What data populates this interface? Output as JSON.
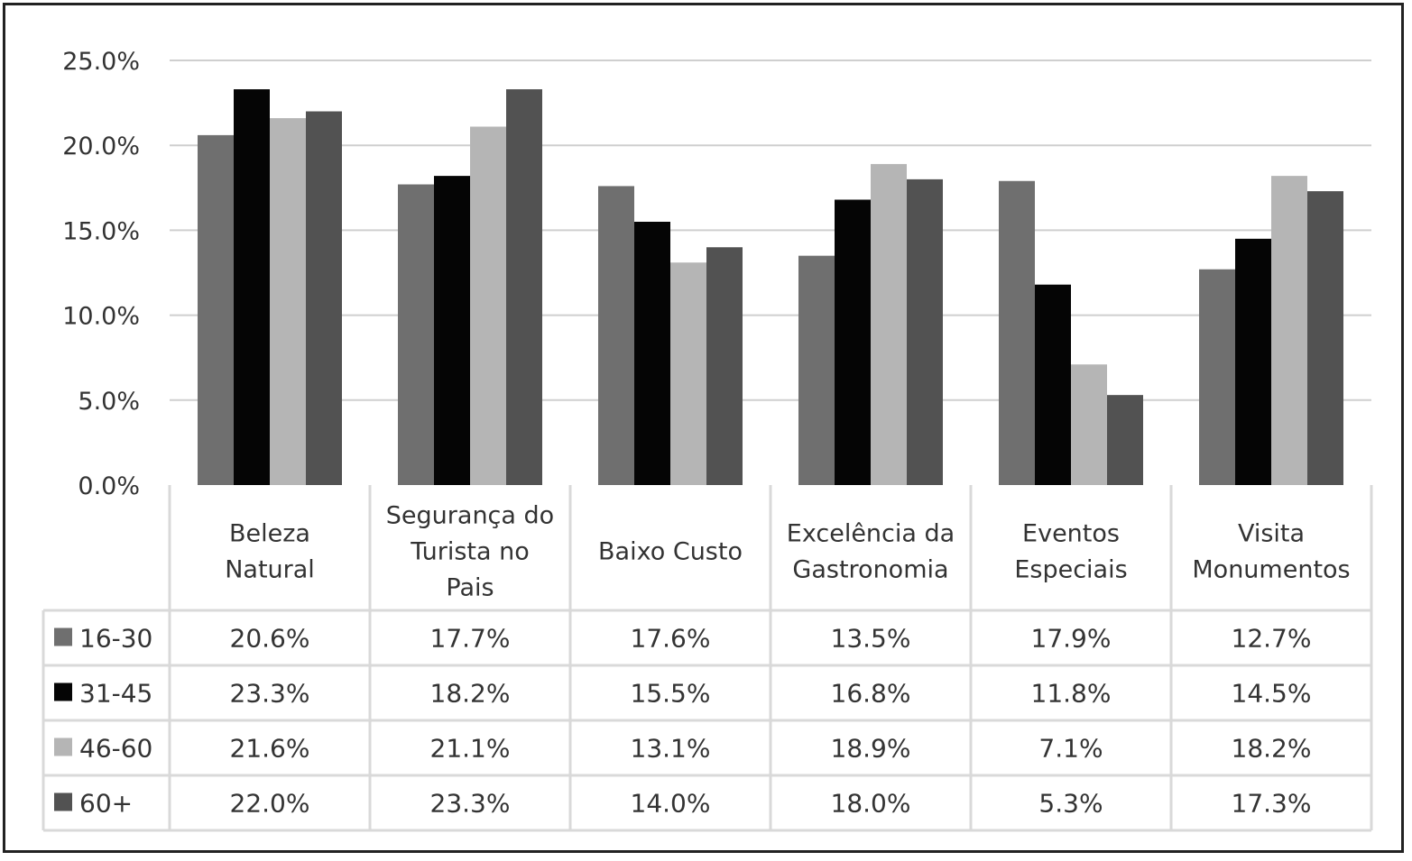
{
  "chart_data": {
    "type": "bar",
    "categories": [
      [
        "Beleza",
        "Natural"
      ],
      [
        "Segurança do",
        "Turista no",
        "Pais"
      ],
      [
        "Baixo Custo"
      ],
      [
        "Excelência da",
        "Gastronomia"
      ],
      [
        "Eventos",
        "Especiais"
      ],
      [
        "Visita",
        "Monumentos"
      ]
    ],
    "series": [
      {
        "name": "16-30",
        "color": "#6f6f6f",
        "values": [
          20.6,
          17.7,
          17.6,
          13.5,
          17.9,
          12.7
        ],
        "labels": [
          "20.6%",
          "17.7%",
          "17.6%",
          "13.5%",
          "17.9%",
          "12.7%"
        ]
      },
      {
        "name": "31-45",
        "color": "#050505",
        "values": [
          23.3,
          18.2,
          15.5,
          16.8,
          11.8,
          14.5
        ],
        "labels": [
          "23.3%",
          "18.2%",
          "15.5%",
          "16.8%",
          "11.8%",
          "14.5%"
        ]
      },
      {
        "name": "46-60",
        "color": "#b5b5b5",
        "values": [
          21.6,
          21.1,
          13.1,
          18.9,
          7.1,
          18.2
        ],
        "labels": [
          "21.6%",
          "21.1%",
          "13.1%",
          "18.9%",
          "7.1%",
          "18.2%"
        ]
      },
      {
        "name": "60+",
        "color": "#525252",
        "values": [
          22.0,
          23.3,
          14.0,
          18.0,
          5.3,
          17.3
        ],
        "labels": [
          "22.0%",
          "23.3%",
          "14.0%",
          "18.0%",
          "5.3%",
          "17.3%"
        ]
      }
    ],
    "yticks": [
      0,
      5,
      10,
      15,
      20,
      25
    ],
    "ytick_labels": [
      "0.0%",
      "5.0%",
      "10.0%",
      "15.0%",
      "20.0%",
      "25.0%"
    ],
    "ylim": [
      0,
      25
    ],
    "grid": true,
    "data_table": true
  }
}
